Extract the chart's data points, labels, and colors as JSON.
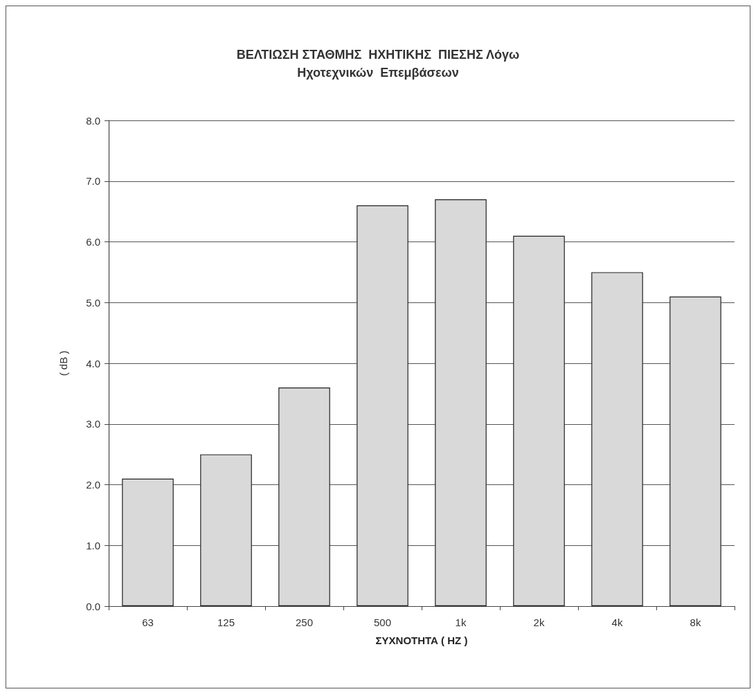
{
  "chart_data": {
    "type": "bar",
    "title": "ΒΕΛΤΙΩΣΗ ΣΤΑΘΜΗΣ  ΗΧΗΤΙΚΗΣ  ΠΙΕΣΗΣ Λόγω\nΗχοτεχνικών  Επεμβάσεων",
    "xlabel": "ΣΥΧΝΟΤΗΤΑ ( HZ )",
    "ylabel": "( dB )",
    "categories": [
      "63",
      "125",
      "250",
      "500",
      "1k",
      "2k",
      "4k",
      "8k"
    ],
    "values": [
      2.1,
      2.5,
      3.6,
      6.6,
      6.7,
      6.1,
      5.5,
      5.1
    ],
    "color": "#d9d9d9",
    "ylim": [
      0,
      8
    ],
    "yticks": [
      {
        "value": 0,
        "label": "0.0"
      },
      {
        "value": 1,
        "label": "1.0"
      },
      {
        "value": 2,
        "label": "2.0"
      },
      {
        "value": 3,
        "label": "3.0"
      },
      {
        "value": 4,
        "label": "4.0"
      },
      {
        "value": 5,
        "label": "5.0"
      },
      {
        "value": 6,
        "label": "6.0"
      },
      {
        "value": 7,
        "label": "7.0"
      },
      {
        "value": 8,
        "label": "8.0"
      }
    ],
    "grid": "y"
  }
}
